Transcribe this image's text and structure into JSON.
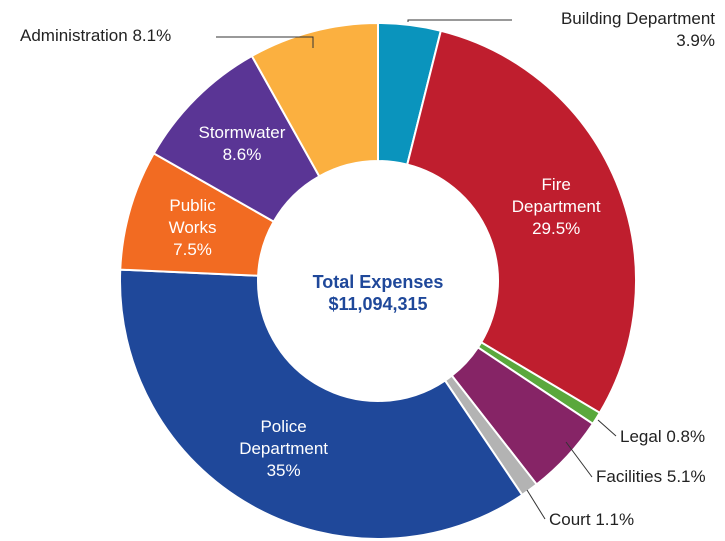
{
  "chart_data": {
    "type": "donut",
    "center_title": "Total Expenses",
    "center_value": "$11,094,315",
    "categories": [
      "Building Department",
      "Fire Department",
      "Legal",
      "Facilities",
      "Court",
      "Police Department",
      "Public Works",
      "Stormwater",
      "Administration"
    ],
    "values": [
      3.9,
      29.5,
      0.8,
      5.1,
      1.1,
      35,
      7.5,
      8.6,
      8.1
    ],
    "value_labels": [
      "3.9%",
      "29.5%",
      "0.8%",
      "5.1%",
      "1.1%",
      "35%",
      "7.5%",
      "8.6%",
      "8.1%"
    ],
    "colors": [
      "#0a94bd",
      "#bf1e2e",
      "#5aa83c",
      "#862466",
      "#b3b3b3",
      "#1f489a",
      "#f26b22",
      "#5a3595",
      "#fbb040"
    ]
  }
}
